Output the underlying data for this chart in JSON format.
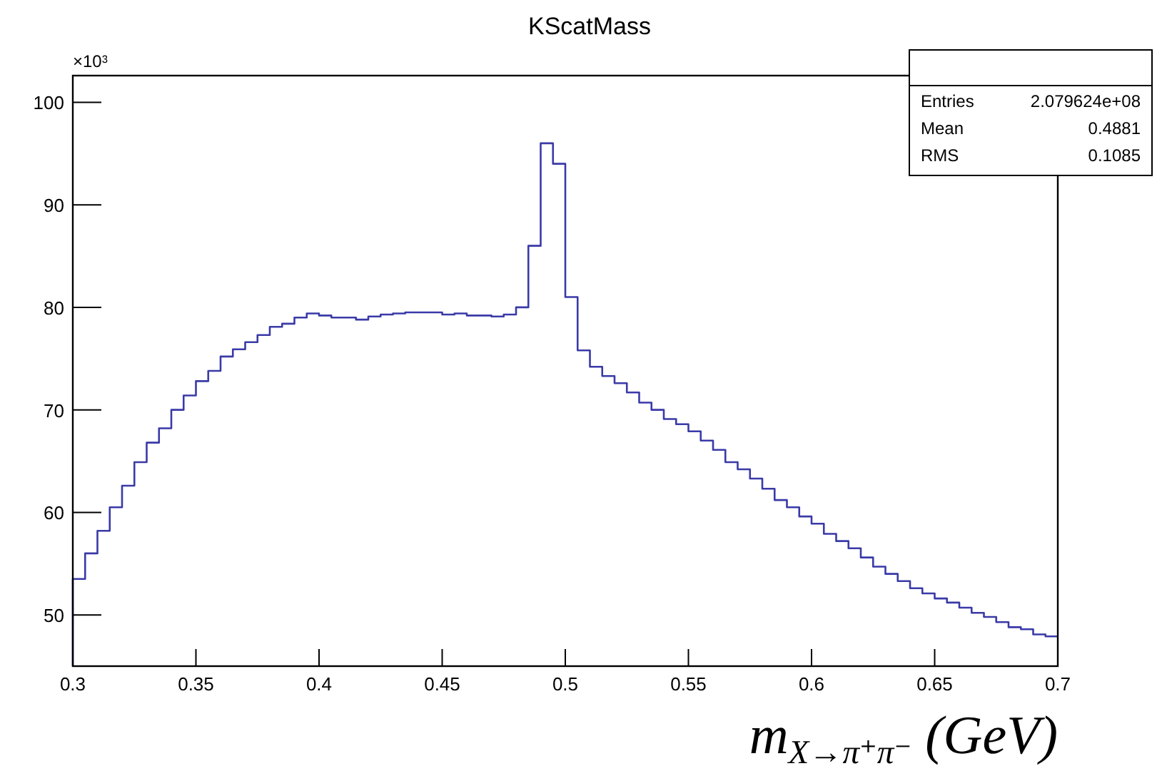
{
  "chart_data": {
    "type": "histogram",
    "title": "KScatMass",
    "xlabel": "m$_{X→π⁺π⁻}$ (GeV)",
    "annotations": [
      "×10$^{3}$",
      "Entries",
      "2.079624e+08",
      "Mean",
      "0.4881",
      "RMS",
      "0.1085"
    ],
    "bins": [
      0.3,
      0.305,
      0.31,
      0.315,
      0.32,
      0.325,
      0.33,
      0.335,
      0.34,
      0.345,
      0.35,
      0.355,
      0.36,
      0.365,
      0.37,
      0.375,
      0.38,
      0.385,
      0.39,
      0.395,
      0.4,
      0.405,
      0.41,
      0.415,
      0.42,
      0.425,
      0.43,
      0.435,
      0.44,
      0.445,
      0.45,
      0.455,
      0.46,
      0.465,
      0.47,
      0.475,
      0.48,
      0.485,
      0.49,
      0.495,
      0.5,
      0.505,
      0.51,
      0.515,
      0.52,
      0.525,
      0.53,
      0.535,
      0.54,
      0.545,
      0.55,
      0.555,
      0.56,
      0.565,
      0.57,
      0.575,
      0.58,
      0.585,
      0.59,
      0.595,
      0.6,
      0.605,
      0.61,
      0.615,
      0.62,
      0.625,
      0.63,
      0.635,
      0.64,
      0.645,
      0.65,
      0.655,
      0.66,
      0.665,
      0.67,
      0.675,
      0.68,
      0.685,
      0.69,
      0.695,
      0.7
    ],
    "values": [
      53.5,
      56.0,
      58.2,
      60.5,
      62.6,
      64.9,
      66.8,
      68.2,
      70.0,
      71.4,
      72.8,
      73.8,
      75.2,
      75.9,
      76.6,
      77.3,
      78.1,
      78.4,
      79.0,
      79.4,
      79.2,
      79.0,
      79.0,
      78.8,
      79.1,
      79.3,
      79.4,
      79.5,
      79.5,
      79.5,
      79.3,
      79.4,
      79.2,
      79.2,
      79.1,
      79.3,
      80.0,
      86.0,
      96.0,
      94.0,
      81.0,
      75.8,
      74.2,
      73.3,
      72.6,
      71.7,
      70.7,
      70.0,
      69.1,
      68.6,
      67.9,
      67.0,
      66.1,
      64.9,
      64.2,
      63.3,
      62.3,
      61.2,
      60.5,
      59.6,
      58.9,
      57.9,
      57.2,
      56.5,
      55.6,
      54.7,
      54.0,
      53.3,
      52.6,
      52.1,
      51.6,
      51.2,
      50.7,
      50.2,
      49.8,
      49.3,
      48.8,
      48.6,
      48.1,
      47.9
    ],
    "color": "#3a3aa8",
    "xlim": [
      0.3,
      0.7
    ],
    "xticks": [
      0.3,
      0.35,
      0.4,
      0.45,
      0.5,
      0.55,
      0.6,
      0.65,
      0.7
    ],
    "ylim": [
      45,
      102.6
    ],
    "yticks": [
      50,
      60,
      70,
      80,
      90,
      100
    ]
  }
}
